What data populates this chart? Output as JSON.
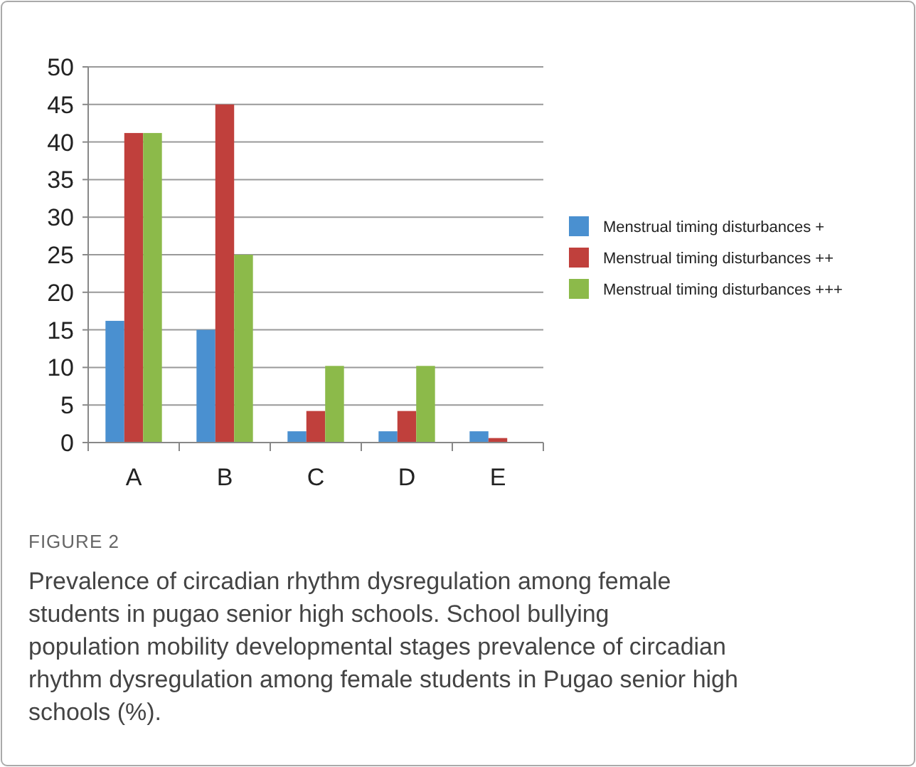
{
  "chart_data": {
    "type": "bar",
    "title": "FIGURE 2",
    "annotations": [
      "Prevalence of circadian rhythm dysregulation among female students in pugao senior high schools. School bullying population mobility developmental stages prevalence of circadian rhythm dysregulation among female students in Pugao senior high schools (%)."
    ],
    "categories": [
      "A",
      "B",
      "C",
      "D",
      "E"
    ],
    "series": [
      {
        "name": "Menstrual timing disturbances +",
        "color": "#4a90d0",
        "values": [
          16.2,
          15,
          1.5,
          1.5,
          1.5
        ]
      },
      {
        "name": "Menstrual timing disturbances ++",
        "color": "#c0403c",
        "values": [
          41.2,
          45,
          4.2,
          4.2,
          0.6
        ]
      },
      {
        "name": "Menstrual timing disturbances +++",
        "color": "#8cba4a",
        "values": [
          41.2,
          25,
          10.2,
          10.2,
          null
        ]
      }
    ],
    "ylim": [
      0,
      50
    ],
    "yticks": [
      0,
      5,
      10,
      15,
      20,
      25,
      30,
      35,
      40,
      45,
      50
    ],
    "grid": "y",
    "legend": "right"
  }
}
